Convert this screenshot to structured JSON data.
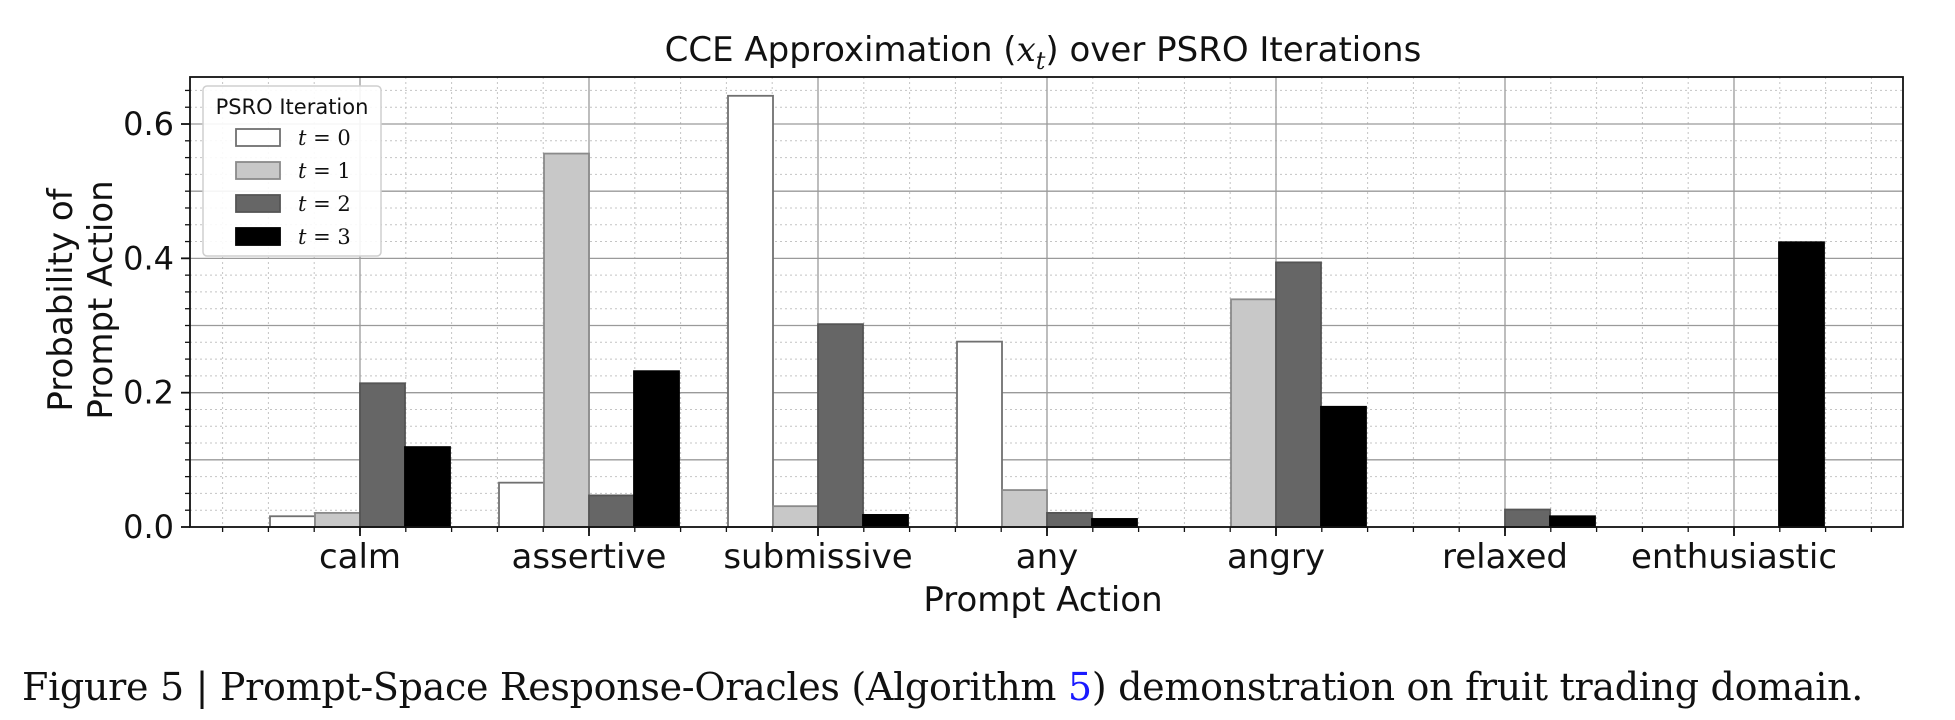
{
  "chart_data": {
    "type": "bar",
    "title_prefix": "CCE Approximation (",
    "title_var": "x",
    "title_sub": "t",
    "title_suffix": ") over PSRO Iterations",
    "xlabel": "Prompt Action",
    "ylabel_lines": [
      "Probability of",
      "Prompt Action"
    ],
    "ylim": [
      0,
      0.67
    ],
    "yticks": [
      "0.0",
      "0.2",
      "0.4",
      "0.6"
    ],
    "grid": true,
    "legend_title": "PSRO Iteration",
    "legend_position": "top-left",
    "categories": [
      "calm",
      "assertive",
      "submissive",
      "any",
      "angry",
      "relaxed",
      "enthusiastic"
    ],
    "series": [
      {
        "name": "t = 0",
        "t_var": "t",
        "t_val": "0",
        "fill": "#ffffff",
        "stroke": "#707070",
        "values": [
          0.016,
          0.066,
          0.642,
          0.276,
          0.0,
          0.0,
          0.0
        ]
      },
      {
        "name": "t = 1",
        "t_var": "t",
        "t_val": "1",
        "fill": "#c8c8c8",
        "stroke": "#8a8a8a",
        "values": [
          0.021,
          0.556,
          0.031,
          0.055,
          0.339,
          0.0,
          0.0
        ]
      },
      {
        "name": "t = 2",
        "t_var": "t",
        "t_val": "2",
        "fill": "#666666",
        "stroke": "#555555",
        "values": [
          0.214,
          0.047,
          0.302,
          0.021,
          0.394,
          0.026,
          0.0
        ]
      },
      {
        "name": "t = 3",
        "t_var": "t",
        "t_val": "3",
        "fill": "#000000",
        "stroke": "#000000",
        "values": [
          0.119,
          0.232,
          0.018,
          0.012,
          0.179,
          0.016,
          0.424
        ]
      }
    ]
  },
  "caption": {
    "prefix": "Figure 5 | Prompt-Space Response-Oracles (Algorithm ",
    "ref": "5",
    "suffix": ") demonstration on fruit trading domain."
  }
}
